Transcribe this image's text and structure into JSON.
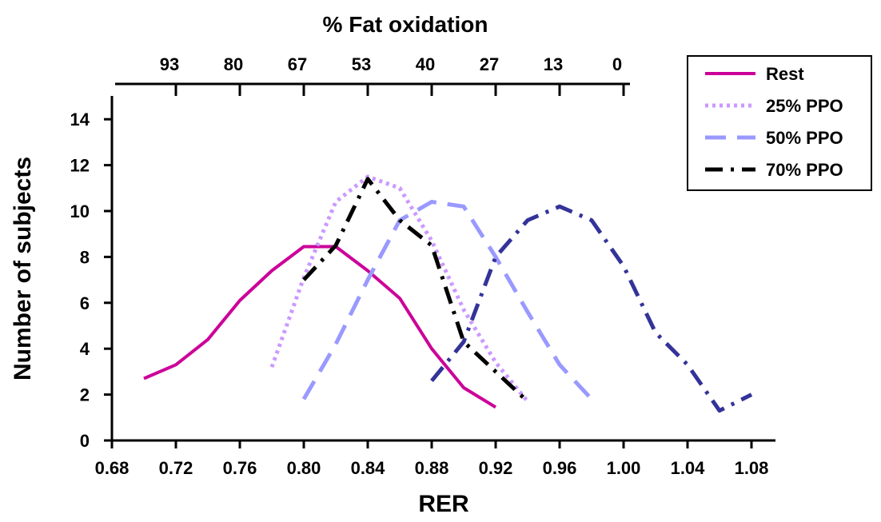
{
  "chart_data": {
    "type": "line",
    "xlabel": "RER",
    "ylabel": "Number of subjects",
    "top_axis_title": "% Fat oxidation",
    "xlim": [
      0.68,
      1.1
    ],
    "ylim": [
      0,
      15
    ],
    "x_ticks": [
      0.68,
      0.72,
      0.76,
      0.8,
      0.84,
      0.88,
      0.92,
      0.96,
      1.0,
      1.04,
      1.08
    ],
    "x_tick_labels": [
      "0.68",
      "0.72",
      "0.76",
      "0.80",
      "0.84",
      "0.88",
      "0.92",
      "0.96",
      "1.00",
      "1.04",
      "1.08"
    ],
    "y_ticks": [
      0,
      2,
      4,
      6,
      8,
      10,
      12,
      14
    ],
    "y_tick_labels": [
      "0",
      "2",
      "4",
      "6",
      "8",
      "10",
      "12",
      "14"
    ],
    "top_axis": {
      "labels": [
        "93",
        "80",
        "67",
        "53",
        "40",
        "27",
        "13",
        "0"
      ],
      "rer_positions": [
        0.72,
        0.76,
        0.8,
        0.84,
        0.88,
        0.92,
        0.96,
        1.0
      ]
    },
    "grid": false,
    "legend_position": "top-right",
    "series": [
      {
        "name": "Rest",
        "color": "#CC0099",
        "style": "solid",
        "points": [
          [
            0.7,
            2.7
          ],
          [
            0.72,
            3.3
          ],
          [
            0.74,
            4.4
          ],
          [
            0.76,
            6.1
          ],
          [
            0.78,
            7.4
          ],
          [
            0.8,
            8.45
          ],
          [
            0.82,
            8.45
          ],
          [
            0.84,
            7.4
          ],
          [
            0.86,
            6.2
          ],
          [
            0.88,
            4.0
          ],
          [
            0.9,
            2.3
          ],
          [
            0.92,
            1.45
          ]
        ]
      },
      {
        "name": "25% PPO",
        "color": "#CC99FF",
        "style": "dotted",
        "points": [
          [
            0.78,
            3.2
          ],
          [
            0.8,
            7.1
          ],
          [
            0.82,
            10.4
          ],
          [
            0.84,
            11.5
          ],
          [
            0.86,
            11.0
          ],
          [
            0.88,
            8.7
          ],
          [
            0.9,
            5.7
          ],
          [
            0.92,
            3.4
          ],
          [
            0.94,
            1.7
          ]
        ]
      },
      {
        "name": "50% PPO",
        "color": "#9999FF",
        "style": "dashed",
        "points": [
          [
            0.8,
            1.8
          ],
          [
            0.82,
            4.2
          ],
          [
            0.84,
            7.0
          ],
          [
            0.86,
            9.6
          ],
          [
            0.88,
            10.4
          ],
          [
            0.9,
            10.2
          ],
          [
            0.92,
            8.0
          ],
          [
            0.94,
            5.6
          ],
          [
            0.96,
            3.3
          ],
          [
            0.98,
            1.8
          ]
        ]
      },
      {
        "name": "70% PPO",
        "color": "#000000",
        "style": "dashdot",
        "points": [
          [
            0.8,
            7.0
          ],
          [
            0.82,
            8.5
          ],
          [
            0.84,
            11.4
          ],
          [
            0.86,
            9.6
          ],
          [
            0.88,
            8.5
          ],
          [
            0.9,
            4.3
          ],
          [
            0.92,
            3.0
          ],
          [
            0.94,
            1.7
          ]
        ]
      },
      {
        "name": "",
        "color": "#333399",
        "style": "dashdot",
        "points": [
          [
            0.88,
            2.6
          ],
          [
            0.9,
            4.3
          ],
          [
            0.92,
            8.0
          ],
          [
            0.94,
            9.6
          ],
          [
            0.96,
            10.2
          ],
          [
            0.98,
            9.6
          ],
          [
            1.0,
            7.6
          ],
          [
            1.02,
            4.7
          ],
          [
            1.04,
            3.3
          ],
          [
            1.06,
            1.3
          ],
          [
            1.08,
            2.0
          ]
        ]
      }
    ]
  }
}
